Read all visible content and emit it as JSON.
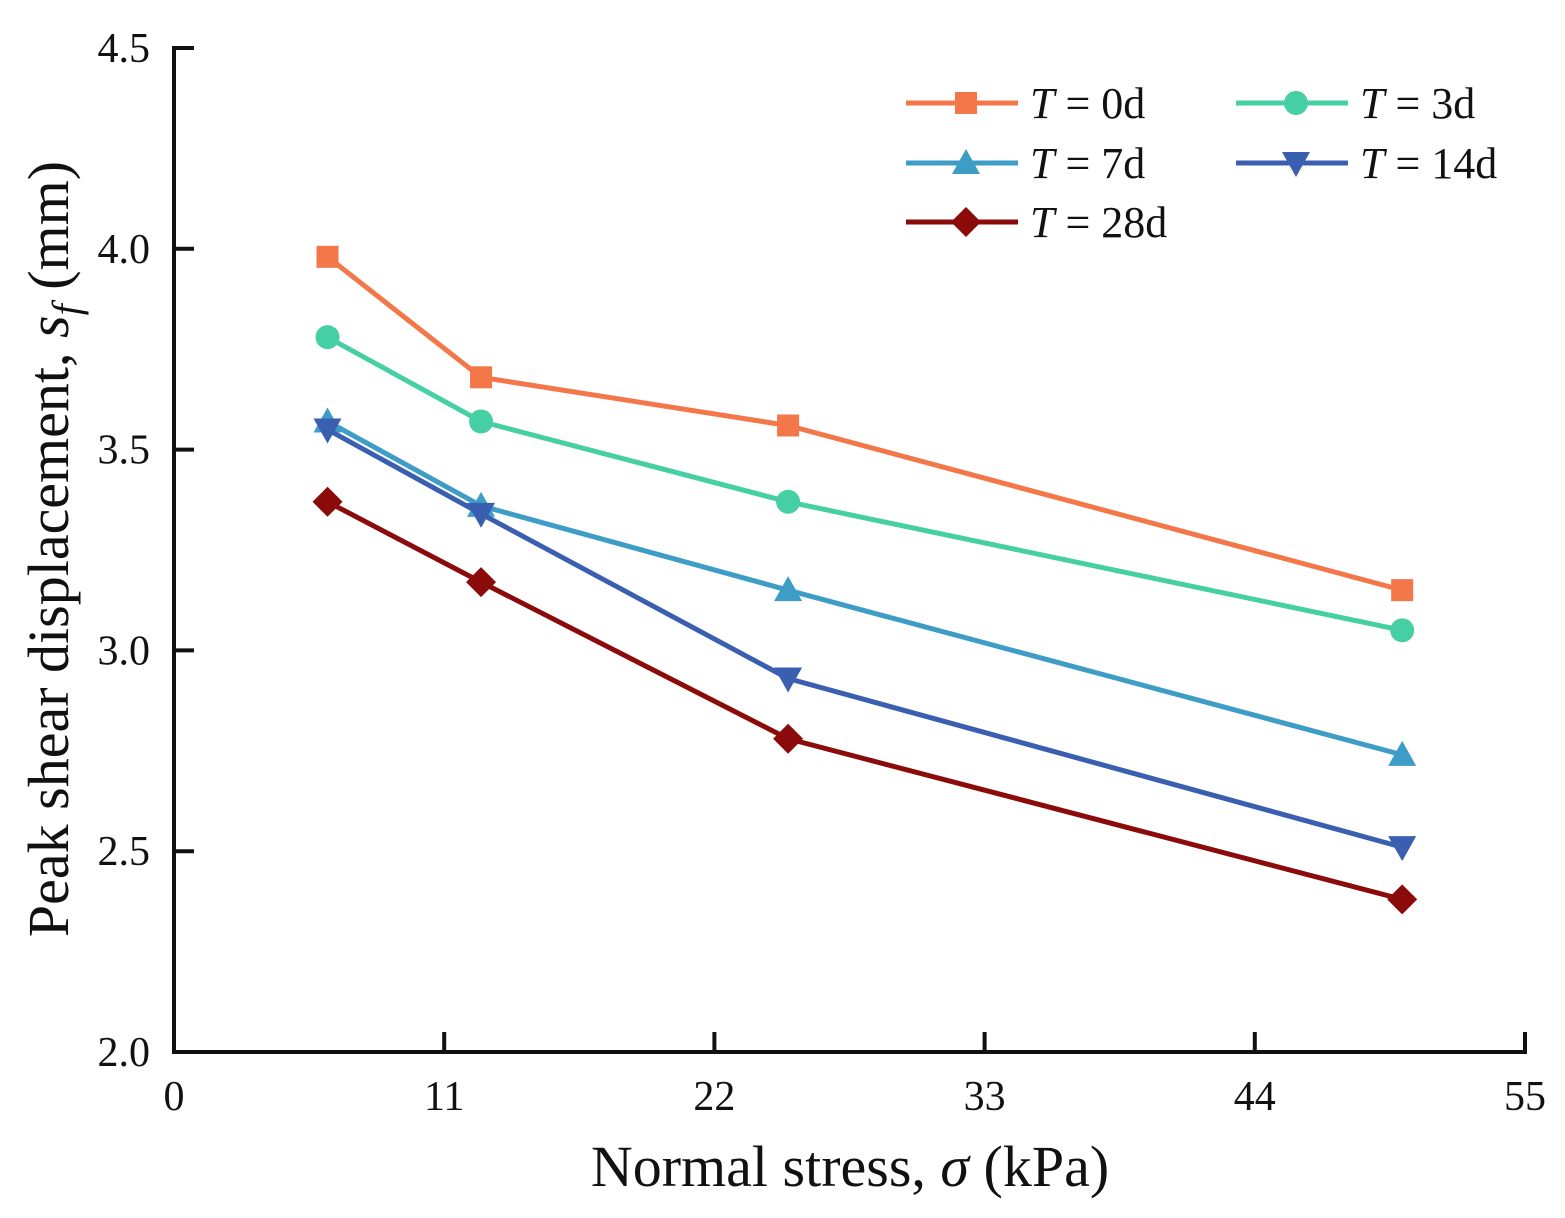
{
  "chart_data": {
    "type": "line",
    "title": "",
    "xlabel": "Normal stress, σ (kPa)",
    "xlabel_parts": {
      "pre": "Normal stress, ",
      "symbol": "σ",
      "post": " (kPa)"
    },
    "ylabel": "Peak shear displacement, s_f (mm)",
    "ylabel_parts": {
      "pre": "Peak shear displacement, ",
      "symbol": "s",
      "sub": "f",
      "post": " (mm)"
    },
    "xlim": [
      0,
      55
    ],
    "ylim": [
      2.0,
      4.5
    ],
    "xticks": [
      0,
      11,
      22,
      33,
      44,
      55
    ],
    "xtick_labels": [
      "0",
      "11",
      "22",
      "33",
      "44",
      "55"
    ],
    "yticks": [
      2.0,
      2.5,
      3.0,
      3.5,
      4.0,
      4.5
    ],
    "ytick_labels": [
      "2.0",
      "2.5",
      "3.0",
      "3.5",
      "4.0",
      "4.5"
    ],
    "grid": false,
    "legend_position": "top-right",
    "x": [
      6.25,
      12.5,
      25,
      50
    ],
    "series": [
      {
        "name": "T = 0d",
        "label_pre": "T",
        "label_post": " = 0d",
        "color": "#F4774A",
        "marker": "square",
        "values": [
          3.98,
          3.68,
          3.56,
          3.15
        ]
      },
      {
        "name": "T = 3d",
        "label_pre": "T",
        "label_post": " = 3d",
        "color": "#45CFA3",
        "marker": "circle",
        "values": [
          3.78,
          3.57,
          3.37,
          3.05
        ]
      },
      {
        "name": "T = 7d",
        "label_pre": "T",
        "label_post": " = 7d",
        "color": "#3E9DC6",
        "marker": "triangle-up",
        "values": [
          3.57,
          3.36,
          3.15,
          2.74
        ]
      },
      {
        "name": "T = 14d",
        "label_pre": "T",
        "label_post": " = 14d",
        "color": "#3A5FB0",
        "marker": "triangle-down",
        "values": [
          3.55,
          3.34,
          2.93,
          2.51
        ]
      },
      {
        "name": "T = 28d",
        "label_pre": "T",
        "label_post": " = 28d",
        "color": "#8B0A0A",
        "marker": "diamond",
        "values": [
          3.37,
          3.17,
          2.78,
          2.38
        ]
      }
    ]
  }
}
